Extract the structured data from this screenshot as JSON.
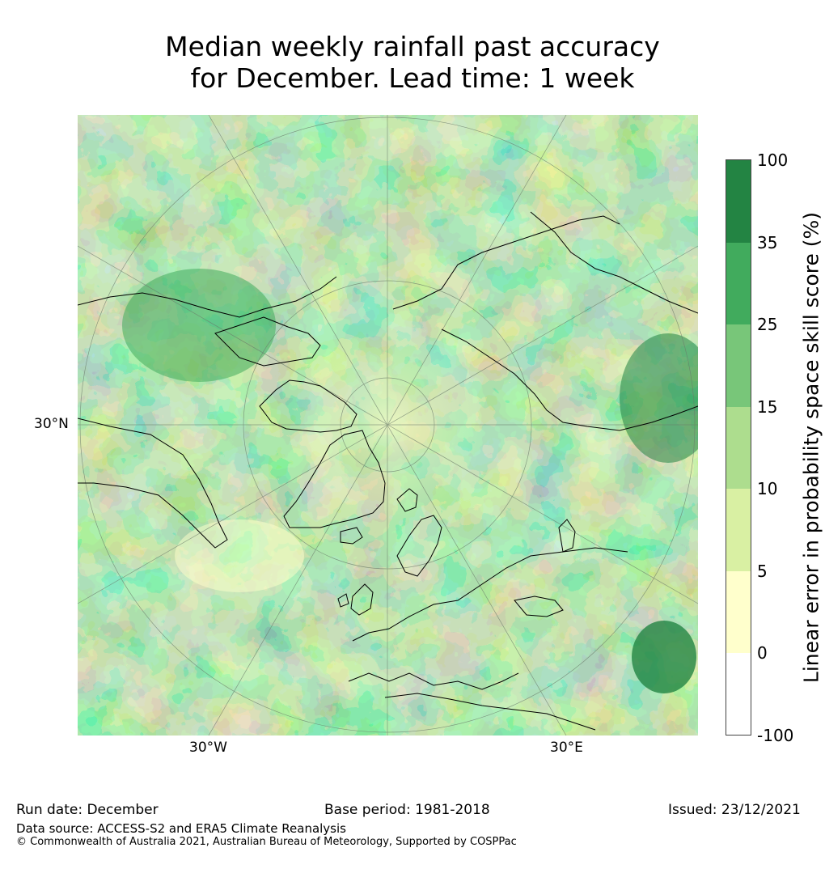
{
  "title_line1": "Median weekly rainfall past accuracy",
  "title_line2": "for December. Lead time: 1 week",
  "map": {
    "projection": "north-polar-stereographic",
    "lat_label": "30°N",
    "lon_labels": {
      "west": "30°W",
      "east": "30°E"
    }
  },
  "colorbar": {
    "label": "Linear error in probability space skill score (%)",
    "ticks": [
      "100",
      "35",
      "25",
      "15",
      "10",
      "5",
      "0",
      "-100"
    ],
    "bins": [
      {
        "range": "35 to 100",
        "color": "#238443"
      },
      {
        "range": "25 to 35",
        "color": "#41ab5d"
      },
      {
        "range": "15 to 25",
        "color": "#78c679"
      },
      {
        "range": "10 to 15",
        "color": "#addd8e"
      },
      {
        "range": "5 to 10",
        "color": "#d9f0a3"
      },
      {
        "range": "0 to 5",
        "color": "#ffffcc"
      },
      {
        "range": "-100 to 0",
        "color": "#ffffff"
      }
    ]
  },
  "footer": {
    "run_date": "Run date: December",
    "base_period": "Base period: 1981-2018",
    "issued": "Issued: 23/12/2021",
    "data_source": "Data source: ACCESS-S2 and ERA5 Climate Reanalysis",
    "copyright": "© Commonwealth of Australia 2021, Australian Bureau of Meteorology, Supported by COSPPac"
  }
}
